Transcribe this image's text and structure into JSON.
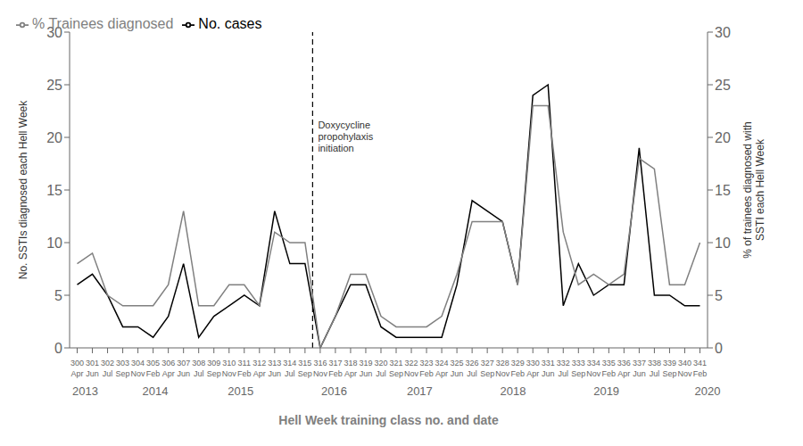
{
  "chart_data": {
    "type": "line",
    "categories": [
      "300\nApr",
      "301\nJun",
      "302\nJul",
      "303\nSep",
      "304\nNov",
      "305\nFeb",
      "306\nApr",
      "307\nJun",
      "308\nJul",
      "309\nSep",
      "310\nNov",
      "311\nFeb",
      "312\nApr",
      "313\nJun",
      "314\nJul",
      "315\nSep",
      "316\nNov",
      "317\nFeb",
      "318\nApr",
      "319\nJun",
      "320\nJul",
      "321\nSep",
      "322\nNov",
      "323\nFeb",
      "324\nApr",
      "325\nJun",
      "326\nJul",
      "327\nSep",
      "328\nNov",
      "329\nFeb",
      "330\nApr",
      "331\nJun",
      "332\nJul",
      "333\nSep",
      "334\nNov",
      "335\nFeb",
      "336\nApr",
      "337\nJun",
      "338\nJul",
      "339\nSep",
      "340\nNov",
      "341\nFeb"
    ],
    "series": [
      {
        "name": "No. cases",
        "color": "#000000",
        "values": [
          6,
          7,
          5,
          2,
          2,
          1,
          3,
          8,
          1,
          3,
          4,
          5,
          4,
          13,
          8,
          8,
          0,
          3,
          6,
          6,
          2,
          1,
          1,
          1,
          1,
          6,
          14,
          13,
          12,
          6,
          24,
          25,
          4,
          8,
          5,
          6,
          6,
          19,
          5,
          5,
          4,
          4
        ]
      },
      {
        "name": "% Trainees diagnosed",
        "color": "#808080",
        "axis": "y2",
        "values": [
          8,
          9,
          5,
          4,
          4,
          4,
          6,
          13,
          4,
          4,
          6,
          6,
          4,
          11,
          10,
          10,
          0,
          3,
          7,
          7,
          3,
          2,
          2,
          2,
          3,
          7,
          12,
          12,
          12,
          6,
          23,
          23,
          11,
          6,
          7,
          6,
          7,
          18,
          17,
          6,
          6,
          10
        ]
      }
    ],
    "ylabel": "No. SSTIs diagnosed each Hell Week",
    "y2label": "% of trainees diagnosed with\nSSTI each Hell Week",
    "xlabel": "Hell Week training class no. and date",
    "ylim": [
      0,
      30
    ],
    "yticks": [
      0,
      5,
      10,
      15,
      20,
      25,
      30
    ],
    "y2lim": [
      0,
      30
    ],
    "y2ticks": [
      0,
      5,
      10,
      15,
      20,
      25,
      30
    ],
    "year_labels": [
      {
        "text": "2013",
        "x": 1.0
      },
      {
        "text": "2014",
        "x": 5.5
      },
      {
        "text": "2015",
        "x": 11.0
      },
      {
        "text": "2016",
        "x": 17.0
      },
      {
        "text": "2017",
        "x": 22.5
      },
      {
        "text": "2018",
        "x": 28.5
      },
      {
        "text": "2019",
        "x": 34.5
      },
      {
        "text": "2020",
        "x": 41.0
      }
    ],
    "vline": {
      "x": 15.5,
      "color": "#000000",
      "line_style": "dashed",
      "text": "Doxycycline\npropohylaxis\ninitiation",
      "y": 20
    },
    "legend": "upper left",
    "grid": false
  }
}
